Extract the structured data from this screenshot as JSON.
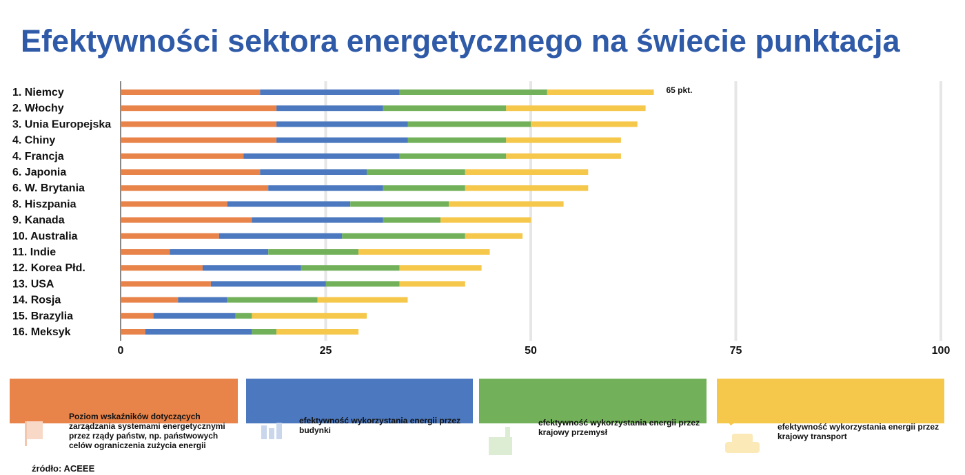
{
  "title": "Efektywności sektora energetycznego na świecie punktacja",
  "source": "źródło: ACEEE",
  "colors": {
    "title": "#2f5aa8",
    "governance": "#e8834a",
    "buildings": "#4b78be",
    "industry": "#72b15a",
    "transport": "#f5c74a"
  },
  "chart_data": {
    "type": "bar",
    "orientation": "horizontal",
    "stacked": true,
    "title": "Efektywności sektora energetycznego na świecie punktacja",
    "categories": [
      "1. Niemcy",
      "2. Włochy",
      "3. Unia Europejska",
      "4. Chiny",
      "4. Francja",
      "6. Japonia",
      "6. W. Brytania",
      "8. Hiszpania",
      "9. Kanada",
      "10. Australia",
      "11. Indie",
      "12. Korea Płd.",
      "13. USA",
      "14. Rosja",
      "15. Brazylia",
      "16. Meksyk"
    ],
    "series": [
      {
        "name": "Poziom wskaźników dotyczących zarządzania systemami energetycznymi przez rządy państw, np. państwowych celów ograniczenia zużycia energii",
        "color": "#e8834a",
        "values": [
          17,
          19,
          19,
          19,
          15,
          17,
          18,
          13,
          16,
          12,
          6,
          10,
          11,
          7,
          4,
          3
        ]
      },
      {
        "name": "efektywność wykorzystania energii przez budynki",
        "color": "#4b78be",
        "values": [
          17,
          13,
          16,
          16,
          19,
          13,
          14,
          15,
          16,
          15,
          12,
          12,
          14,
          6,
          10,
          13
        ]
      },
      {
        "name": "efektywność wykorzystania energii przez krajowy przemysł",
        "color": "#72b15a",
        "values": [
          18,
          15,
          15,
          12,
          13,
          12,
          10,
          12,
          7,
          15,
          11,
          12,
          9,
          11,
          2,
          3
        ]
      },
      {
        "name": "efektywność wykorzystania energii przez krajowy transport",
        "color": "#f5c74a",
        "values": [
          13,
          17,
          13,
          14,
          14,
          15,
          15,
          14,
          11,
          7,
          16,
          10,
          8,
          11,
          14,
          10
        ]
      }
    ],
    "xlim": [
      0,
      100
    ],
    "xticks": [
      0,
      25,
      50,
      75,
      100
    ],
    "data_labels": [
      {
        "category": "1. Niemcy",
        "text": "65 pkt."
      }
    ],
    "grid": true,
    "legend_position": "bottom"
  },
  "legend": [
    {
      "text": "Poziom wskaźników dotyczących zarządzania systemami energetycznymi przez rządy państw, np. państwowych celów ograniczenia zużycia energii",
      "color": "#e8834a",
      "icon": "flag-icon"
    },
    {
      "text": "efektywność wykorzystania energii przez budynki",
      "color": "#4b78be",
      "icon": "building-icon"
    },
    {
      "text": "efektywność wykorzystania energii przez krajowy przemysł",
      "color": "#72b15a",
      "icon": "factory-icon"
    },
    {
      "text": "efektywność wykorzystania energii przez krajowy transport",
      "color": "#f5c74a",
      "icon": "car-icon"
    }
  ]
}
